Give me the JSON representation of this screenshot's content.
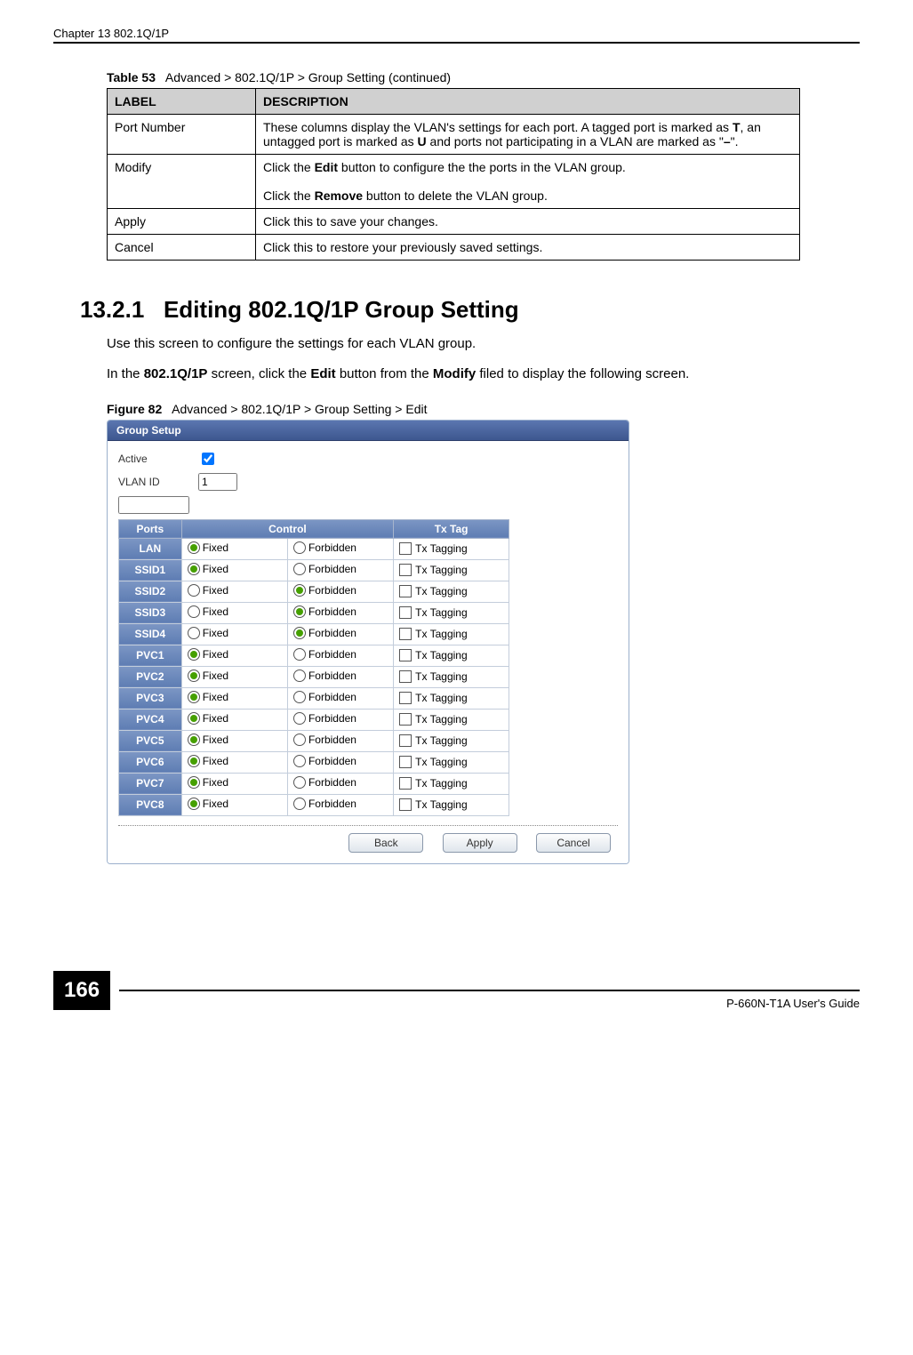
{
  "header": {
    "chapter": "Chapter 13 802.1Q/1P"
  },
  "table53": {
    "caption_label": "Table 53",
    "caption_text": "Advanced > 802.1Q/1P > Group Setting (continued)",
    "head_label": "LABEL",
    "head_desc": "DESCRIPTION",
    "rows": [
      {
        "label": "Port Number",
        "desc": "These columns display the VLAN's settings for each port. A tagged port is marked as T, an untagged port is marked as U and ports not participating in a VLAN are marked as \"–\"."
      },
      {
        "label": "Modify",
        "desc": "Click the Edit button to configure the the ports in the VLAN group.\n\nClick the Remove button to delete the VLAN group."
      },
      {
        "label": "Apply",
        "desc": "Click this to save your changes."
      },
      {
        "label": "Cancel",
        "desc": "Click this to restore your previously saved settings."
      }
    ]
  },
  "section": {
    "number": "13.2.1",
    "title": "Editing 802.1Q/1P Group Setting",
    "p1": "Use this screen to configure the settings for each VLAN group.",
    "p2": "In the 802.1Q/1P screen, click the Edit button from the Modify filed to display the following screen."
  },
  "figure": {
    "label": "Figure 82",
    "text": "Advanced > 802.1Q/1P > Group Setting > Edit"
  },
  "panel": {
    "bar": "Group Setup",
    "active_label": "Active",
    "active_checked": true,
    "vlan_label": "VLAN ID",
    "vlan_value": "1",
    "columns": {
      "ports": "Ports",
      "control": "Control",
      "txtag": "Tx Tag"
    },
    "radio_labels": {
      "fixed": "Fixed",
      "forbidden": "Forbidden"
    },
    "tx_label": "Tx Tagging",
    "rows": [
      {
        "name": "LAN",
        "sel": "fixed",
        "tx": false
      },
      {
        "name": "SSID1",
        "sel": "fixed",
        "tx": false
      },
      {
        "name": "SSID2",
        "sel": "forbidden",
        "tx": false
      },
      {
        "name": "SSID3",
        "sel": "forbidden",
        "tx": false
      },
      {
        "name": "SSID4",
        "sel": "forbidden",
        "tx": false
      },
      {
        "name": "PVC1",
        "sel": "fixed",
        "tx": false
      },
      {
        "name": "PVC2",
        "sel": "fixed",
        "tx": false
      },
      {
        "name": "PVC3",
        "sel": "fixed",
        "tx": false
      },
      {
        "name": "PVC4",
        "sel": "fixed",
        "tx": false
      },
      {
        "name": "PVC5",
        "sel": "fixed",
        "tx": false
      },
      {
        "name": "PVC6",
        "sel": "fixed",
        "tx": false
      },
      {
        "name": "PVC7",
        "sel": "fixed",
        "tx": false
      },
      {
        "name": "PVC8",
        "sel": "fixed",
        "tx": false
      }
    ],
    "buttons": {
      "back": "Back",
      "apply": "Apply",
      "cancel": "Cancel"
    }
  },
  "footer": {
    "page": "166",
    "guide": "P-660N-T1A User's Guide"
  }
}
